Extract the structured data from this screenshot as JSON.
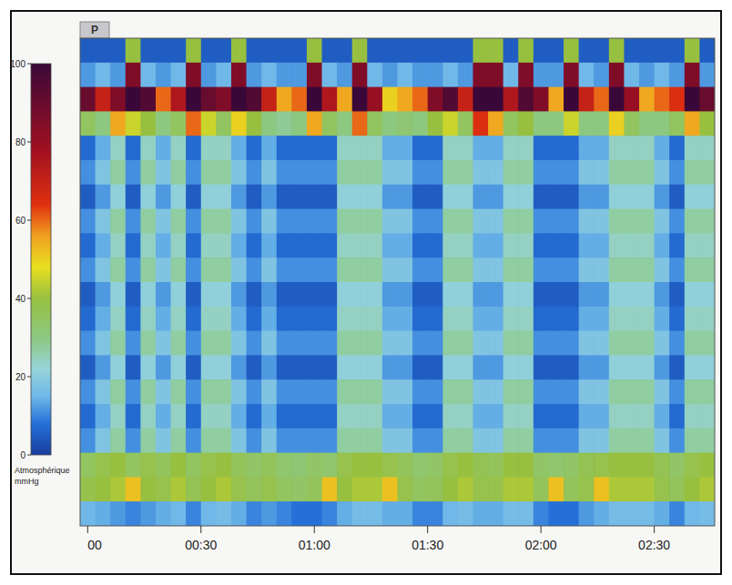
{
  "chart_data": {
    "type": "heatmap",
    "title": "P",
    "x": [
      0,
      4,
      8,
      12,
      16,
      20,
      24,
      28,
      32,
      36,
      40,
      44,
      48,
      52,
      56,
      60,
      64,
      68,
      72,
      76,
      80,
      84,
      88,
      92,
      96,
      100,
      104,
      108,
      112,
      116,
      120,
      124,
      128,
      132,
      136,
      140,
      144,
      148,
      152,
      156,
      160,
      164
    ],
    "y": [
      1,
      2,
      3,
      4,
      5,
      6,
      7,
      8,
      9,
      10,
      11,
      12,
      13,
      14,
      15,
      16,
      17,
      18,
      19,
      20
    ],
    "xlim": [
      -2,
      166
    ],
    "ylim": [
      20.5,
      0.5
    ],
    "xticks": [
      {
        "value": 0,
        "label": "00"
      },
      {
        "value": 30,
        "label": "00:30"
      },
      {
        "value": 60,
        "label": "01:00"
      },
      {
        "value": 90,
        "label": "01:30"
      },
      {
        "value": 120,
        "label": "02:00"
      },
      {
        "value": 150,
        "label": "02:30"
      }
    ],
    "tick_labels": "x",
    "grid": false,
    "colorbar_range": [
      0,
      100
    ],
    "colorbar_ticks": [
      0,
      20,
      40,
      60,
      80,
      100
    ],
    "colorbar_label_lines": [
      "Atmosphérique",
      "mmHg"
    ],
    "values": [
      [
        5,
        5,
        5,
        40,
        5,
        5,
        5,
        40,
        5,
        5,
        40,
        5,
        5,
        5,
        5,
        40,
        5,
        5,
        40,
        5,
        5,
        5,
        5,
        5,
        5,
        5,
        40,
        40,
        5,
        40,
        5,
        5,
        40,
        5,
        5,
        40,
        5,
        5,
        5,
        5,
        40,
        5
      ],
      [
        12,
        15,
        12,
        85,
        15,
        12,
        15,
        85,
        12,
        15,
        85,
        12,
        15,
        12,
        12,
        85,
        15,
        12,
        85,
        15,
        12,
        15,
        12,
        12,
        15,
        12,
        85,
        85,
        15,
        85,
        12,
        12,
        85,
        15,
        12,
        85,
        15,
        12,
        15,
        12,
        85,
        12
      ],
      [
        90,
        70,
        85,
        100,
        95,
        60,
        75,
        100,
        90,
        85,
        100,
        95,
        70,
        55,
        60,
        100,
        75,
        55,
        100,
        80,
        50,
        55,
        60,
        85,
        95,
        70,
        100,
        100,
        75,
        95,
        85,
        55,
        100,
        70,
        60,
        100,
        80,
        55,
        60,
        65,
        100,
        90
      ],
      [
        35,
        30,
        55,
        45,
        40,
        30,
        35,
        60,
        45,
        35,
        50,
        40,
        30,
        28,
        30,
        55,
        35,
        30,
        60,
        35,
        30,
        32,
        30,
        40,
        45,
        35,
        65,
        55,
        35,
        40,
        30,
        30,
        45,
        30,
        30,
        50,
        35,
        30,
        30,
        35,
        55,
        40
      ],
      [
        7,
        14,
        24,
        7,
        24,
        14,
        24,
        7,
        24,
        24,
        14,
        7,
        14,
        7,
        7,
        7,
        7,
        24,
        24,
        24,
        14,
        14,
        7,
        7,
        24,
        24,
        14,
        14,
        24,
        24,
        7,
        7,
        7,
        14,
        14,
        24,
        24,
        24,
        14,
        7,
        24,
        24
      ],
      [
        11,
        18,
        27,
        11,
        27,
        18,
        27,
        11,
        27,
        27,
        18,
        11,
        18,
        11,
        11,
        11,
        11,
        27,
        27,
        27,
        18,
        18,
        11,
        11,
        27,
        27,
        18,
        18,
        27,
        27,
        11,
        11,
        11,
        18,
        18,
        27,
        27,
        27,
        18,
        11,
        27,
        27
      ],
      [
        5,
        12,
        21,
        5,
        21,
        12,
        21,
        5,
        21,
        21,
        12,
        5,
        12,
        5,
        5,
        5,
        5,
        21,
        21,
        21,
        12,
        12,
        5,
        5,
        21,
        21,
        12,
        12,
        21,
        21,
        5,
        5,
        5,
        12,
        12,
        21,
        21,
        21,
        12,
        5,
        21,
        21
      ],
      [
        11,
        18,
        27,
        11,
        27,
        18,
        27,
        11,
        27,
        27,
        18,
        11,
        18,
        11,
        11,
        11,
        11,
        27,
        27,
        27,
        18,
        18,
        11,
        11,
        27,
        27,
        18,
        18,
        27,
        27,
        11,
        11,
        11,
        18,
        18,
        27,
        27,
        27,
        18,
        11,
        27,
        27
      ],
      [
        7,
        14,
        24,
        7,
        24,
        14,
        24,
        7,
        24,
        24,
        14,
        7,
        14,
        7,
        7,
        7,
        7,
        24,
        24,
        24,
        14,
        14,
        7,
        7,
        24,
        24,
        14,
        14,
        24,
        24,
        7,
        7,
        7,
        14,
        14,
        24,
        24,
        24,
        14,
        7,
        24,
        24
      ],
      [
        11,
        18,
        27,
        11,
        27,
        18,
        27,
        11,
        27,
        27,
        18,
        11,
        18,
        11,
        11,
        11,
        11,
        27,
        27,
        27,
        18,
        18,
        11,
        11,
        27,
        27,
        18,
        18,
        27,
        27,
        11,
        11,
        11,
        18,
        18,
        27,
        27,
        27,
        18,
        11,
        27,
        27
      ],
      [
        5,
        12,
        21,
        5,
        21,
        12,
        21,
        5,
        21,
        21,
        12,
        5,
        12,
        5,
        5,
        5,
        5,
        21,
        21,
        21,
        12,
        12,
        5,
        5,
        21,
        21,
        12,
        12,
        21,
        21,
        5,
        5,
        5,
        12,
        12,
        21,
        21,
        21,
        12,
        5,
        21,
        21
      ],
      [
        7,
        14,
        24,
        7,
        24,
        14,
        24,
        7,
        24,
        24,
        14,
        7,
        14,
        7,
        7,
        7,
        7,
        24,
        24,
        24,
        14,
        14,
        7,
        7,
        24,
        24,
        14,
        14,
        24,
        24,
        7,
        7,
        7,
        14,
        14,
        24,
        24,
        24,
        14,
        7,
        24,
        24
      ],
      [
        11,
        18,
        27,
        11,
        27,
        18,
        27,
        11,
        27,
        27,
        18,
        11,
        18,
        11,
        11,
        11,
        11,
        27,
        27,
        27,
        18,
        18,
        11,
        11,
        27,
        27,
        18,
        18,
        27,
        27,
        11,
        11,
        11,
        18,
        18,
        27,
        27,
        27,
        18,
        11,
        27,
        27
      ],
      [
        5,
        12,
        21,
        5,
        21,
        12,
        21,
        5,
        21,
        21,
        12,
        5,
        12,
        5,
        5,
        5,
        5,
        21,
        21,
        21,
        12,
        12,
        5,
        5,
        21,
        21,
        12,
        12,
        21,
        21,
        5,
        5,
        5,
        12,
        12,
        21,
        21,
        21,
        12,
        5,
        21,
        21
      ],
      [
        11,
        18,
        27,
        11,
        27,
        18,
        27,
        11,
        27,
        27,
        18,
        11,
        18,
        11,
        11,
        11,
        11,
        27,
        27,
        27,
        18,
        18,
        11,
        11,
        27,
        27,
        18,
        18,
        27,
        27,
        11,
        11,
        11,
        18,
        18,
        27,
        27,
        27,
        18,
        11,
        27,
        27
      ],
      [
        7,
        14,
        24,
        7,
        24,
        14,
        24,
        7,
        24,
        24,
        14,
        7,
        14,
        7,
        7,
        7,
        7,
        24,
        24,
        24,
        14,
        14,
        7,
        7,
        24,
        24,
        14,
        14,
        24,
        24,
        7,
        7,
        7,
        14,
        14,
        24,
        24,
        24,
        14,
        7,
        24,
        24
      ],
      [
        11,
        18,
        27,
        11,
        27,
        18,
        27,
        11,
        27,
        27,
        18,
        11,
        18,
        11,
        11,
        11,
        11,
        27,
        27,
        27,
        18,
        18,
        11,
        11,
        27,
        27,
        18,
        18,
        27,
        27,
        11,
        11,
        11,
        18,
        18,
        27,
        27,
        27,
        18,
        11,
        27,
        27
      ],
      [
        35,
        38,
        40,
        35,
        38,
        36,
        40,
        35,
        38,
        40,
        36,
        34,
        36,
        33,
        32,
        34,
        33,
        38,
        40,
        40,
        38,
        36,
        33,
        34,
        38,
        40,
        37,
        36,
        40,
        40,
        34,
        33,
        34,
        37,
        38,
        40,
        40,
        40,
        37,
        34,
        38,
        40
      ],
      [
        38,
        40,
        42,
        52,
        40,
        38,
        42,
        37,
        40,
        42,
        38,
        36,
        38,
        35,
        34,
        36,
        52,
        40,
        42,
        42,
        52,
        38,
        35,
        36,
        40,
        42,
        38,
        38,
        42,
        42,
        36,
        52,
        36,
        38,
        52,
        42,
        42,
        42,
        38,
        36,
        40,
        42
      ],
      [
        15,
        14,
        12,
        10,
        12,
        14,
        15,
        10,
        15,
        16,
        14,
        10,
        12,
        10,
        8,
        8,
        10,
        14,
        16,
        16,
        14,
        14,
        10,
        10,
        15,
        16,
        14,
        14,
        16,
        16,
        10,
        8,
        8,
        12,
        14,
        16,
        16,
        16,
        14,
        10,
        15,
        16
      ]
    ]
  }
}
